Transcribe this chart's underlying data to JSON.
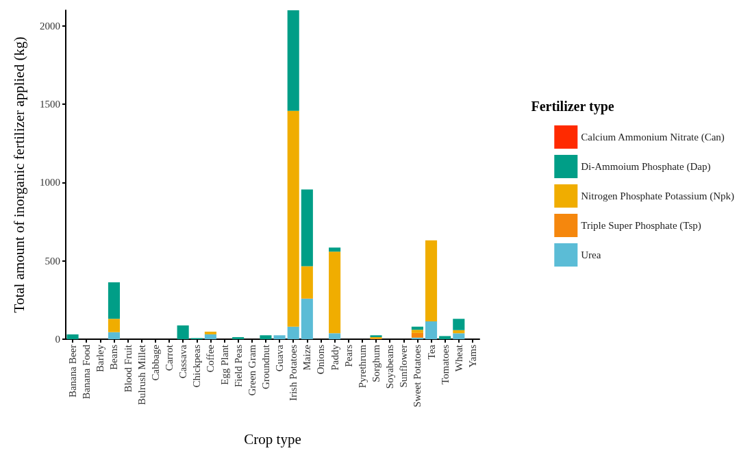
{
  "chart_data": {
    "type": "bar",
    "stacked": true,
    "xlabel": "Crop type",
    "ylabel": "Total amount of inorganic fertilizer applied (kg)",
    "legend_title": "Fertilizer type",
    "legend": "right",
    "grid": false,
    "categories": [
      "Banana Beer",
      "Banana Food",
      "Barley",
      "Beans",
      "Blood Fruit",
      "Bulrush Millet",
      "Cabbage",
      "Carrot",
      "Cassava",
      "Chickpeas",
      "Coffee",
      "Egg Plant",
      "Field Peas",
      "Green Gram",
      "Groundnut",
      "Guava",
      "Irish Potatoes",
      "Maize",
      "Onions",
      "Paddy",
      "Pears",
      "Pyrethrum",
      "Sorghum",
      "Soyabeans",
      "Sunflower",
      "Sweet Potatoes",
      "Tea",
      "Tomatoes",
      "Wheat",
      "Yams"
    ],
    "ylim": [
      0,
      2100
    ],
    "yticks": [
      0,
      500,
      1000,
      1500,
      2000
    ],
    "series": [
      {
        "name": "Urea",
        "color": "#5bbcd6",
        "values": [
          0,
          0,
          0,
          45,
          0,
          0,
          0,
          0,
          0,
          0,
          31,
          0,
          0,
          0,
          0,
          25,
          80,
          258,
          0,
          38,
          0,
          0,
          0,
          0,
          0,
          10,
          114,
          0,
          38,
          0
        ]
      },
      {
        "name": "Triple Super Phosphate (Tsp)",
        "color": "#f5870d",
        "values": [
          0,
          0,
          0,
          0,
          0,
          0,
          0,
          0,
          0,
          0,
          0,
          0,
          0,
          0,
          0,
          0,
          0,
          3,
          0,
          0,
          0,
          0,
          5,
          0,
          0,
          30,
          0,
          0,
          0,
          0
        ]
      },
      {
        "name": "Nitrogen Phosphate Potassium (Npk)",
        "color": "#f0ad00",
        "values": [
          0,
          0,
          0,
          85,
          0,
          0,
          0,
          0,
          0,
          0,
          17,
          0,
          0,
          0,
          0,
          0,
          1378,
          205,
          0,
          521,
          0,
          0,
          8,
          0,
          0,
          20,
          517,
          0,
          20,
          0
        ]
      },
      {
        "name": "Di-Ammoium Phosphate (Dap)",
        "color": "#009e87",
        "values": [
          31,
          0,
          0,
          233,
          0,
          0,
          0,
          0,
          88,
          7,
          0,
          0,
          13,
          0,
          25,
          0,
          642,
          490,
          0,
          26,
          0,
          0,
          12,
          0,
          0,
          20,
          0,
          20,
          72,
          0
        ]
      },
      {
        "name": "Calcium Ammonium Nitrate (Can)",
        "color": "#ff2a00",
        "values": [
          0,
          0,
          0,
          0,
          0,
          0,
          0,
          0,
          0,
          0,
          0,
          0,
          0,
          0,
          0,
          0,
          0,
          0,
          0,
          0,
          0,
          0,
          0,
          0,
          0,
          0,
          0,
          0,
          0,
          0
        ]
      }
    ]
  }
}
